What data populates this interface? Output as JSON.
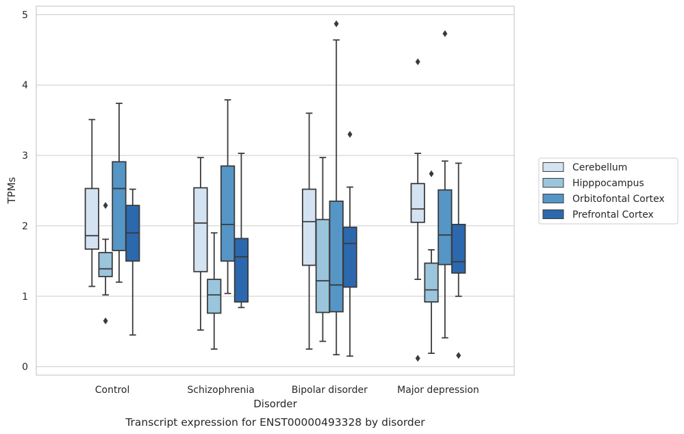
{
  "chart_data": {
    "type": "boxplot",
    "caption": "Transcript expression for ENST00000493328 by disorder",
    "xlabel": "Disorder",
    "ylabel": "TPMs",
    "ylim": [
      -0.12,
      5.12
    ],
    "yticks": [
      0,
      1,
      2,
      3,
      4,
      5
    ],
    "grid": true,
    "legend_position": "right",
    "categories": [
      "Control",
      "Schizophrenia",
      "Bipolar disorder",
      "Major depression"
    ],
    "series": [
      {
        "name": "Cerebellum",
        "color": "#d4e3f2",
        "boxes": [
          {
            "whislo": 1.14,
            "q1": 1.67,
            "med": 1.86,
            "q3": 2.53,
            "whishi": 3.51,
            "fliers": []
          },
          {
            "whislo": 0.52,
            "q1": 1.35,
            "med": 2.04,
            "q3": 2.54,
            "whishi": 2.97,
            "fliers": []
          },
          {
            "whislo": 0.25,
            "q1": 1.44,
            "med": 2.06,
            "q3": 2.52,
            "whishi": 3.6,
            "fliers": []
          },
          {
            "whislo": 1.24,
            "q1": 2.05,
            "med": 2.24,
            "q3": 2.6,
            "whishi": 3.03,
            "fliers": [
              4.33,
              0.12
            ]
          }
        ]
      },
      {
        "name": "Hipppocampus",
        "color": "#9ac5dd",
        "boxes": [
          {
            "whislo": 1.02,
            "q1": 1.28,
            "med": 1.39,
            "q3": 1.62,
            "whishi": 1.81,
            "fliers": [
              2.29,
              0.65
            ]
          },
          {
            "whislo": 0.25,
            "q1": 0.76,
            "med": 1.02,
            "q3": 1.24,
            "whishi": 1.9,
            "fliers": []
          },
          {
            "whislo": 0.36,
            "q1": 0.77,
            "med": 1.22,
            "q3": 2.09,
            "whishi": 2.97,
            "fliers": []
          },
          {
            "whislo": 0.19,
            "q1": 0.92,
            "med": 1.09,
            "q3": 1.47,
            "whishi": 1.66,
            "fliers": [
              2.74
            ]
          }
        ]
      },
      {
        "name": "Orbitofontal Cortex",
        "color": "#5596c6",
        "boxes": [
          {
            "whislo": 1.2,
            "q1": 1.65,
            "med": 2.53,
            "q3": 2.91,
            "whishi": 3.74,
            "fliers": []
          },
          {
            "whislo": 1.04,
            "q1": 1.5,
            "med": 2.02,
            "q3": 2.85,
            "whishi": 3.79,
            "fliers": []
          },
          {
            "whislo": 0.17,
            "q1": 0.78,
            "med": 1.16,
            "q3": 2.35,
            "whishi": 4.64,
            "fliers": [
              4.87
            ]
          },
          {
            "whislo": 0.41,
            "q1": 1.45,
            "med": 1.87,
            "q3": 2.51,
            "whishi": 2.92,
            "fliers": [
              4.73
            ]
          }
        ]
      },
      {
        "name": "Prefrontal Cortex",
        "color": "#2c68ad",
        "boxes": [
          {
            "whislo": 0.45,
            "q1": 1.5,
            "med": 1.9,
            "q3": 2.29,
            "whishi": 2.52,
            "fliers": []
          },
          {
            "whislo": 0.84,
            "q1": 0.92,
            "med": 1.56,
            "q3": 1.82,
            "whishi": 3.03,
            "fliers": []
          },
          {
            "whislo": 0.15,
            "q1": 1.13,
            "med": 1.75,
            "q3": 1.98,
            "whishi": 2.55,
            "fliers": [
              3.3
            ]
          },
          {
            "whislo": 1.0,
            "q1": 1.33,
            "med": 1.49,
            "q3": 2.02,
            "whishi": 2.89,
            "fliers": [
              0.16
            ]
          }
        ]
      }
    ]
  }
}
